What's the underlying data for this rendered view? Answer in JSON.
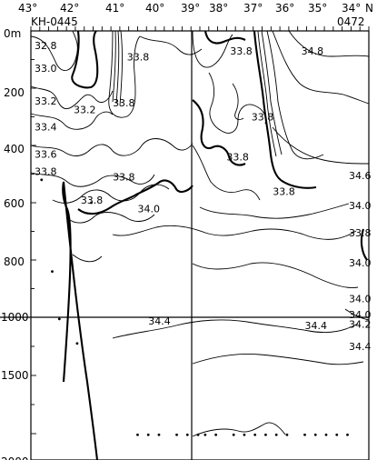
{
  "chart_data": {
    "type": "contour",
    "title": "",
    "station_left": "KH-0445",
    "station_right": "0472",
    "x_ticks": [
      "43°",
      "42°",
      "41°",
      "40°",
      "39°",
      "38°",
      "37°",
      "36°",
      "35°",
      "34°"
    ],
    "x_unit": "N",
    "x_range_lat": [
      43.3,
      33.8
    ],
    "y_ticks": [
      "0m",
      "200",
      "400",
      "600",
      "800",
      "1000",
      "1500",
      "2000"
    ],
    "y_breaks": {
      "upper_scale": "0–1000 m",
      "lower_scale": "1000–2100 m"
    },
    "contour_labels": [
      {
        "text": "32.8",
        "lat": 43.0,
        "depth": 50
      },
      {
        "text": "33.0",
        "lat": 43.0,
        "depth": 130
      },
      {
        "text": "33.2",
        "lat": 43.0,
        "depth": 245
      },
      {
        "text": "33.2",
        "lat": 42.1,
        "depth": 275
      },
      {
        "text": "33.4",
        "lat": 43.0,
        "depth": 335
      },
      {
        "text": "33.6",
        "lat": 43.0,
        "depth": 430
      },
      {
        "text": "33.8",
        "lat": 43.0,
        "depth": 490
      },
      {
        "text": "33.8",
        "lat": 40.6,
        "depth": 90
      },
      {
        "text": "33.8",
        "lat": 37.7,
        "depth": 70
      },
      {
        "text": "34.8",
        "lat": 35.7,
        "depth": 70
      },
      {
        "text": "33.8",
        "lat": 41.0,
        "depth": 250
      },
      {
        "text": "33.8",
        "lat": 37.1,
        "depth": 300
      },
      {
        "text": "33.8",
        "lat": 37.8,
        "depth": 440
      },
      {
        "text": "33.8",
        "lat": 41.0,
        "depth": 510
      },
      {
        "text": "33.8",
        "lat": 41.9,
        "depth": 590
      },
      {
        "text": "34.0",
        "lat": 40.3,
        "depth": 620
      },
      {
        "text": "33.8",
        "lat": 36.5,
        "depth": 560
      },
      {
        "text": "34.6",
        "lat": 34.0,
        "depth": 505
      },
      {
        "text": "34.0",
        "lat": 34.0,
        "depth": 610
      },
      {
        "text": "33.8",
        "lat": 34.0,
        "depth": 705
      },
      {
        "text": "34.0",
        "lat": 34.0,
        "depth": 810
      },
      {
        "text": "34.0",
        "lat": 34.0,
        "depth": 935
      },
      {
        "text": "34.0",
        "lat": 34.0,
        "depth": 990
      },
      {
        "text": "34.2",
        "lat": 34.0,
        "depth": 1060
      },
      {
        "text": "34.4",
        "lat": 40.0,
        "depth": 1030
      },
      {
        "text": "34.4",
        "lat": 35.6,
        "depth": 1070
      },
      {
        "text": "34.4",
        "lat": 34.0,
        "depth": 1250
      }
    ],
    "sample_points": [
      {
        "lat": 43.0,
        "depth": 520
      },
      {
        "lat": 42.7,
        "depth": 840
      },
      {
        "lat": 42.5,
        "depth": 1015
      },
      {
        "lat": 42.0,
        "depth": 1225
      },
      {
        "lat": 41.6,
        "depth": 600
      },
      {
        "lat": 40.3,
        "depth": 2010
      },
      {
        "lat": 40.0,
        "depth": 2010
      },
      {
        "lat": 39.7,
        "depth": 2010
      },
      {
        "lat": 39.2,
        "depth": 2010
      },
      {
        "lat": 38.9,
        "depth": 2010
      },
      {
        "lat": 38.6,
        "depth": 2010
      },
      {
        "lat": 38.4,
        "depth": 2010
      },
      {
        "lat": 38.1,
        "depth": 2010
      },
      {
        "lat": 37.6,
        "depth": 2010
      },
      {
        "lat": 37.3,
        "depth": 2010
      },
      {
        "lat": 37.0,
        "depth": 2010
      },
      {
        "lat": 36.7,
        "depth": 2010
      },
      {
        "lat": 36.4,
        "depth": 2010
      },
      {
        "lat": 36.1,
        "depth": 2010
      },
      {
        "lat": 35.6,
        "depth": 2010
      },
      {
        "lat": 35.3,
        "depth": 2010
      },
      {
        "lat": 35.0,
        "depth": 2010
      },
      {
        "lat": 34.7,
        "depth": 2010
      },
      {
        "lat": 34.4,
        "depth": 2010
      }
    ]
  }
}
